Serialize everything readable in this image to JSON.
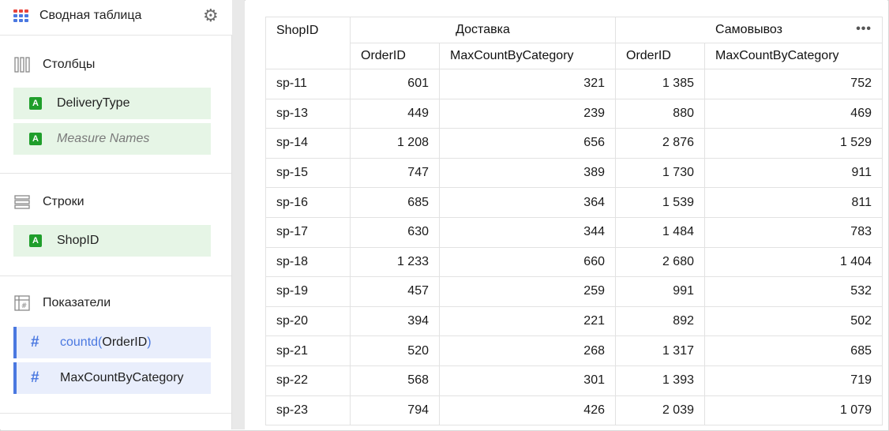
{
  "visualization": {
    "title": "Сводная таблица",
    "icon": "pivot-table-icon",
    "settings_icon": "gear-icon"
  },
  "sections": {
    "columns": {
      "title": "Столбцы",
      "icon": "columns-icon",
      "items": [
        "DeliveryType",
        "Measure Names"
      ]
    },
    "rows": {
      "title": "Строки",
      "icon": "rows-icon",
      "items": [
        "ShopID"
      ]
    },
    "measures": {
      "title": "Показатели",
      "icon": "measures-icon",
      "items": [
        {
          "fn": "countd",
          "arg": "OrderID",
          "open": "(",
          "close": ")"
        },
        {
          "label": "MaxCountByCategory"
        }
      ]
    }
  },
  "colors": {
    "dimension_bg": "#e6f5e6",
    "dimension_badge": "#1f9e2b",
    "measure_bg": "#e9eefc",
    "measure_accent": "#4a78e0"
  },
  "table": {
    "row_header": "ShopID",
    "groups": [
      "Доставка",
      "Самовывоз"
    ],
    "measures": [
      "OrderID",
      "MaxCountByCategory",
      "OrderID",
      "MaxCountByCategory"
    ],
    "more_icon": "more-dots-icon",
    "rows": [
      [
        "sp-11",
        "601",
        "321",
        "1 385",
        "752"
      ],
      [
        "sp-13",
        "449",
        "239",
        "880",
        "469"
      ],
      [
        "sp-14",
        "1 208",
        "656",
        "2 876",
        "1 529"
      ],
      [
        "sp-15",
        "747",
        "389",
        "1 730",
        "911"
      ],
      [
        "sp-16",
        "685",
        "364",
        "1 539",
        "811"
      ],
      [
        "sp-17",
        "630",
        "344",
        "1 484",
        "783"
      ],
      [
        "sp-18",
        "1 233",
        "660",
        "2 680",
        "1 404"
      ],
      [
        "sp-19",
        "457",
        "259",
        "991",
        "532"
      ],
      [
        "sp-20",
        "394",
        "221",
        "892",
        "502"
      ],
      [
        "sp-21",
        "520",
        "268",
        "1 317",
        "685"
      ],
      [
        "sp-22",
        "568",
        "301",
        "1 393",
        "719"
      ],
      [
        "sp-23",
        "794",
        "426",
        "2 039",
        "1 079"
      ]
    ]
  }
}
